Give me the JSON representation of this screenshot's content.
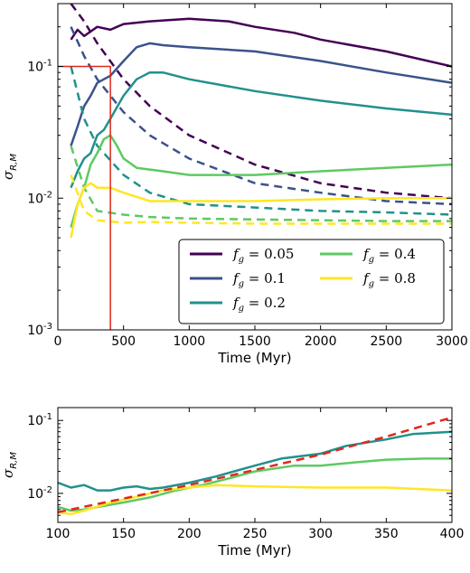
{
  "chart_data": [
    {
      "type": "line",
      "xlabel": "Time (Myr)",
      "ylabel": "σ_R,M",
      "yscale": "log",
      "xlim": [
        0,
        3000
      ],
      "ylim": [
        0.001,
        0.3
      ],
      "xticks": [
        0,
        500,
        1000,
        1500,
        2000,
        2500,
        3000
      ],
      "xtick_labels": [
        "0",
        "500",
        "1000",
        "1500",
        "2000",
        "2500",
        "3000"
      ],
      "yticks": [
        0.001,
        0.01,
        0.1
      ],
      "ytick_labels": [
        "10⁻³",
        "10⁻²",
        "10⁻¹"
      ],
      "grid": false,
      "legend": {
        "position": "lower-right",
        "columns": 2,
        "entries": [
          {
            "label": "f_g = 0.05",
            "color": "#440154"
          },
          {
            "label": "f_g = 0.1",
            "color": "#3b528b"
          },
          {
            "label": "f_g = 0.2",
            "color": "#21918c"
          },
          {
            "label": "f_g = 0.4",
            "color": "#5ec962"
          },
          {
            "label": "f_g = 0.8",
            "color": "#fde725"
          }
        ]
      },
      "series": [
        {
          "name": "f_g = 0.05",
          "style": "solid",
          "color": "#440154",
          "x": [
            100,
            150,
            200,
            300,
            400,
            500,
            700,
            1000,
            1300,
            1500,
            1800,
            2000,
            2500,
            3000
          ],
          "y": [
            0.16,
            0.19,
            0.17,
            0.2,
            0.19,
            0.21,
            0.22,
            0.23,
            0.22,
            0.2,
            0.18,
            0.16,
            0.13,
            0.1
          ]
        },
        {
          "style": "dashed",
          "color": "#440154",
          "x": [
            100,
            200,
            300,
            500,
            700,
            1000,
            1500,
            2000,
            2500,
            3000
          ],
          "y": [
            0.3,
            0.22,
            0.15,
            0.08,
            0.05,
            0.03,
            0.018,
            0.013,
            0.011,
            0.01
          ]
        },
        {
          "name": "f_g = 0.1",
          "style": "solid",
          "color": "#3b528b",
          "x": [
            100,
            150,
            200,
            250,
            300,
            350,
            400,
            500,
            600,
            700,
            800,
            1000,
            1500,
            2000,
            2500,
            3000
          ],
          "y": [
            0.025,
            0.035,
            0.05,
            0.06,
            0.075,
            0.08,
            0.085,
            0.11,
            0.14,
            0.15,
            0.145,
            0.14,
            0.13,
            0.11,
            0.09,
            0.075
          ]
        },
        {
          "style": "dashed",
          "color": "#3b528b",
          "x": [
            100,
            200,
            300,
            500,
            700,
            1000,
            1500,
            2000,
            2500,
            3000
          ],
          "y": [
            0.2,
            0.12,
            0.08,
            0.045,
            0.03,
            0.02,
            0.013,
            0.011,
            0.0095,
            0.009
          ]
        },
        {
          "name": "f_g = 0.2",
          "style": "solid",
          "color": "#21918c",
          "x": [
            100,
            150,
            200,
            250,
            300,
            350,
            400,
            500,
            600,
            700,
            800,
            1000,
            1500,
            2000,
            2500,
            3000
          ],
          "y": [
            0.012,
            0.016,
            0.02,
            0.022,
            0.03,
            0.033,
            0.04,
            0.06,
            0.08,
            0.09,
            0.09,
            0.08,
            0.065,
            0.055,
            0.048,
            0.043
          ]
        },
        {
          "style": "dashed",
          "color": "#21918c",
          "x": [
            100,
            200,
            300,
            500,
            700,
            1000,
            1500,
            2000,
            2500,
            3000
          ],
          "y": [
            0.1,
            0.04,
            0.025,
            0.015,
            0.011,
            0.009,
            0.0085,
            0.008,
            0.0078,
            0.0075
          ]
        },
        {
          "name": "f_g = 0.4",
          "style": "solid",
          "color": "#5ec962",
          "x": [
            100,
            150,
            200,
            250,
            300,
            350,
            400,
            450,
            500,
            600,
            800,
            1000,
            1500,
            2000,
            2500,
            3000
          ],
          "y": [
            0.006,
            0.009,
            0.012,
            0.018,
            0.022,
            0.028,
            0.03,
            0.025,
            0.02,
            0.017,
            0.016,
            0.015,
            0.015,
            0.016,
            0.017,
            0.018
          ]
        },
        {
          "style": "dashed",
          "color": "#5ec962",
          "x": [
            100,
            200,
            300,
            500,
            700,
            1000,
            1500,
            2000,
            2500,
            3000
          ],
          "y": [
            0.025,
            0.012,
            0.008,
            0.0075,
            0.0072,
            0.007,
            0.0069,
            0.0068,
            0.0067,
            0.0067
          ]
        },
        {
          "name": "f_g = 0.8",
          "style": "solid",
          "color": "#fde725",
          "x": [
            100,
            150,
            200,
            250,
            300,
            400,
            500,
            700,
            1000,
            1500,
            2000,
            2500,
            3000
          ],
          "y": [
            0.005,
            0.009,
            0.012,
            0.013,
            0.012,
            0.012,
            0.011,
            0.0095,
            0.0095,
            0.0095,
            0.0098,
            0.01,
            0.01
          ]
        },
        {
          "style": "dashed",
          "color": "#fde725",
          "x": [
            100,
            200,
            300,
            500,
            700,
            1000,
            1500,
            2000,
            2500,
            3000
          ],
          "y": [
            0.015,
            0.008,
            0.0068,
            0.0065,
            0.0066,
            0.0065,
            0.0064,
            0.0064,
            0.0064,
            0.0064
          ]
        }
      ],
      "annotations": [
        {
          "type": "rectangle",
          "color": "#e0281c",
          "x_range": [
            0,
            400
          ],
          "y_range": [
            0.001,
            0.1
          ]
        }
      ]
    },
    {
      "type": "line",
      "xlabel": "Time (Myr)",
      "ylabel": "σ_R,M",
      "yscale": "log",
      "xlim": [
        100,
        400
      ],
      "ylim": [
        0.004,
        0.15
      ],
      "xticks": [
        100,
        150,
        200,
        250,
        300,
        350,
        400
      ],
      "xtick_labels": [
        "100",
        "150",
        "200",
        "250",
        "300",
        "350",
        "400"
      ],
      "yticks": [
        0.01,
        0.1
      ],
      "ytick_labels": [
        "10⁻²",
        "10⁻¹"
      ],
      "grid": false,
      "series": [
        {
          "style": "solid",
          "color": "#21918c",
          "x": [
            100,
            110,
            120,
            130,
            140,
            150,
            160,
            170,
            180,
            200,
            220,
            250,
            270,
            300,
            320,
            350,
            370,
            400
          ],
          "y": [
            0.014,
            0.012,
            0.013,
            0.011,
            0.011,
            0.012,
            0.0125,
            0.0115,
            0.012,
            0.014,
            0.017,
            0.024,
            0.03,
            0.035,
            0.045,
            0.055,
            0.065,
            0.07
          ]
        },
        {
          "style": "solid",
          "color": "#5ec962",
          "x": [
            100,
            110,
            120,
            130,
            150,
            170,
            190,
            210,
            230,
            250,
            280,
            300,
            330,
            350,
            380,
            400
          ],
          "y": [
            0.0065,
            0.0058,
            0.006,
            0.0065,
            0.0075,
            0.0088,
            0.011,
            0.013,
            0.016,
            0.02,
            0.024,
            0.024,
            0.027,
            0.029,
            0.03,
            0.03
          ]
        },
        {
          "style": "solid",
          "color": "#fde725",
          "x": [
            100,
            110,
            120,
            140,
            160,
            180,
            200,
            220,
            250,
            300,
            350,
            400
          ],
          "y": [
            0.0055,
            0.0052,
            0.0058,
            0.0075,
            0.009,
            0.011,
            0.012,
            0.013,
            0.0125,
            0.012,
            0.012,
            0.011
          ]
        },
        {
          "style": "dashed",
          "color": "#e0281c",
          "x": [
            100,
            150,
            200,
            250,
            300,
            350,
            400
          ],
          "y": [
            0.0055,
            0.0085,
            0.013,
            0.021,
            0.034,
            0.06,
            0.11
          ]
        }
      ]
    }
  ]
}
